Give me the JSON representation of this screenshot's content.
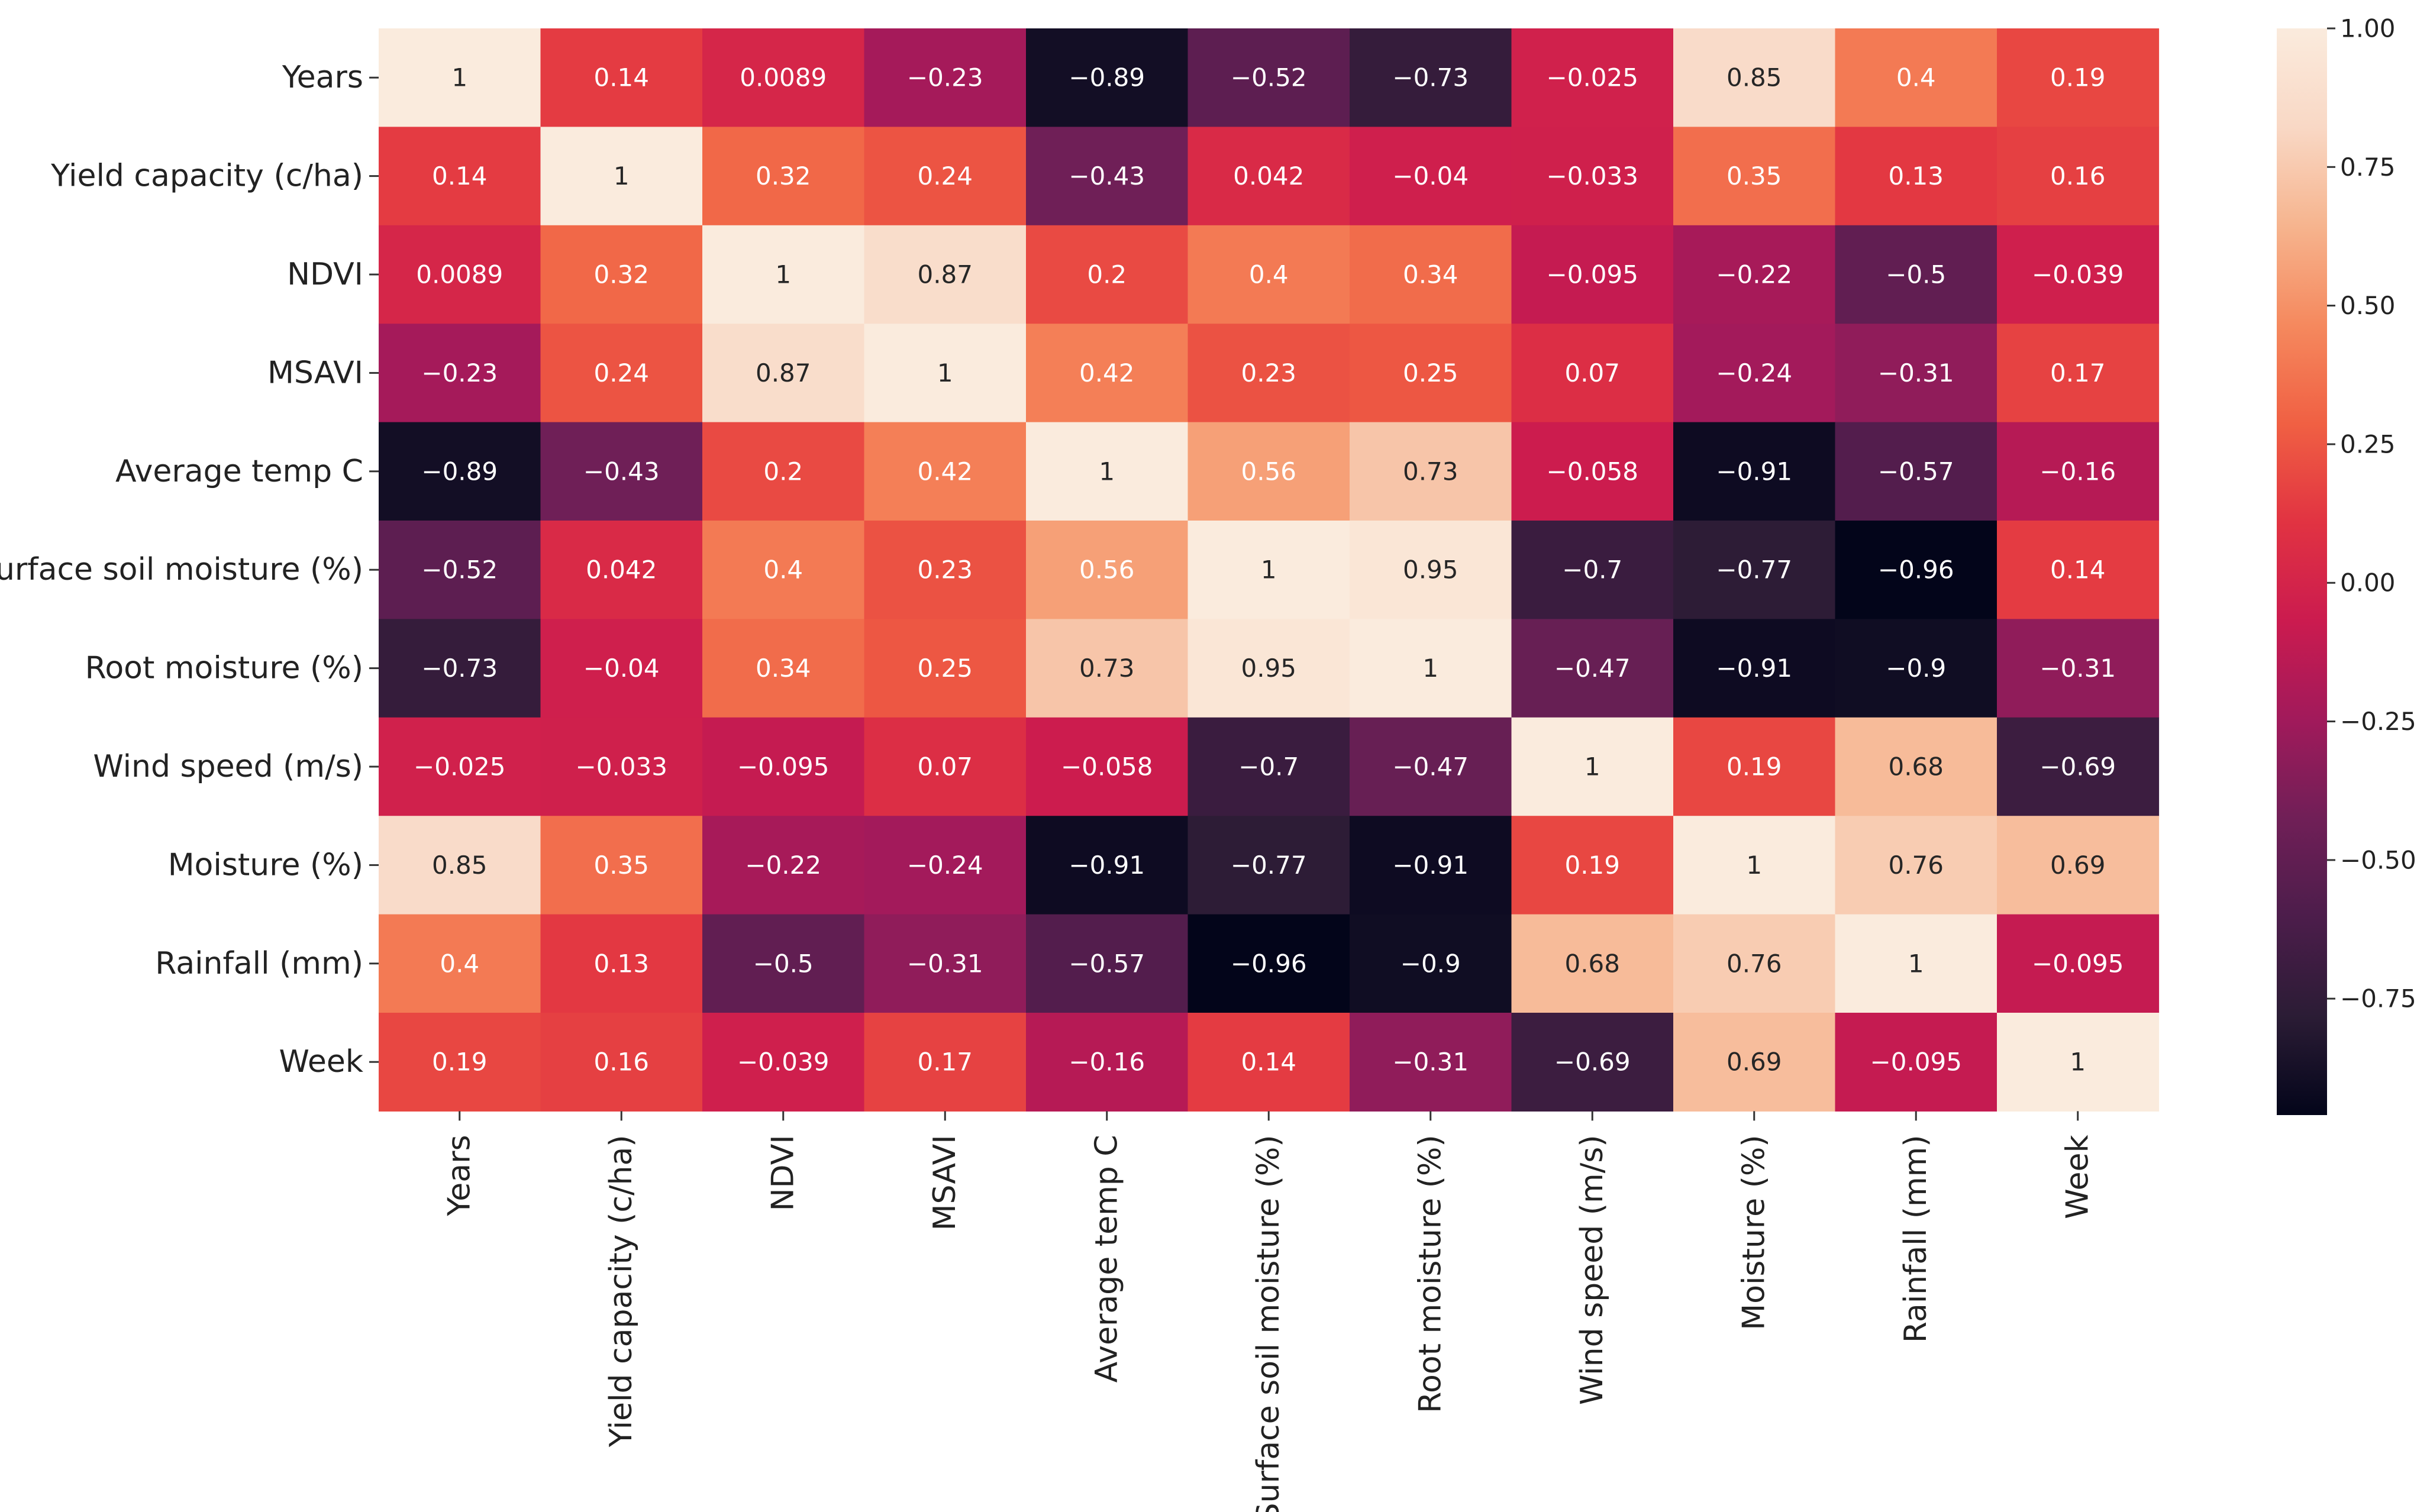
{
  "chart_data": {
    "type": "heatmap",
    "title": "",
    "xlabel": "",
    "ylabel": "",
    "labels": [
      "Years",
      "Yield capacity (c/ha)",
      "NDVI",
      "MSAVI",
      "Average temp C",
      "Surface soil moisture (%)",
      "Root moisture (%)",
      "Wind speed (m/s)",
      "Moisture (%)",
      "Rainfall (mm)",
      "Week"
    ],
    "matrix": [
      [
        1,
        0.14,
        0.0089,
        -0.23,
        -0.89,
        -0.52,
        -0.73,
        -0.025,
        0.85,
        0.4,
        0.19
      ],
      [
        0.14,
        1,
        0.32,
        0.24,
        -0.43,
        0.042,
        -0.04,
        -0.033,
        0.35,
        0.13,
        0.16
      ],
      [
        0.0089,
        0.32,
        1,
        0.87,
        0.2,
        0.4,
        0.34,
        -0.095,
        -0.22,
        -0.5,
        -0.039
      ],
      [
        -0.23,
        0.24,
        0.87,
        1,
        0.42,
        0.23,
        0.25,
        0.07,
        -0.24,
        -0.31,
        0.17
      ],
      [
        -0.89,
        -0.43,
        0.2,
        0.42,
        1,
        0.56,
        0.73,
        -0.058,
        -0.91,
        -0.57,
        -0.16
      ],
      [
        -0.52,
        0.042,
        0.4,
        0.23,
        0.56,
        1,
        0.95,
        -0.7,
        -0.77,
        -0.96,
        0.14
      ],
      [
        -0.73,
        -0.04,
        0.34,
        0.25,
        0.73,
        0.95,
        1,
        -0.47,
        -0.91,
        -0.9,
        -0.31
      ],
      [
        -0.025,
        -0.033,
        -0.095,
        0.07,
        -0.058,
        -0.7,
        -0.47,
        1,
        0.19,
        0.68,
        -0.69
      ],
      [
        0.85,
        0.35,
        -0.22,
        -0.24,
        -0.91,
        -0.77,
        -0.91,
        0.19,
        1,
        0.76,
        0.69
      ],
      [
        0.4,
        0.13,
        -0.5,
        -0.31,
        -0.57,
        -0.96,
        -0.9,
        0.68,
        0.76,
        1,
        -0.095
      ],
      [
        0.19,
        0.16,
        -0.039,
        0.17,
        -0.16,
        0.14,
        -0.31,
        -0.69,
        0.69,
        -0.095,
        1
      ]
    ],
    "cell_text": [
      [
        "1",
        "0.14",
        "0.0089",
        "−0.23",
        "−0.89",
        "−0.52",
        "−0.73",
        "−0.025",
        "0.85",
        "0.4",
        "0.19"
      ],
      [
        "0.14",
        "1",
        "0.32",
        "0.24",
        "−0.43",
        "0.042",
        "−0.04",
        "−0.033",
        "0.35",
        "0.13",
        "0.16"
      ],
      [
        "0.0089",
        "0.32",
        "1",
        "0.87",
        "0.2",
        "0.4",
        "0.34",
        "−0.095",
        "−0.22",
        "−0.5",
        "−0.039"
      ],
      [
        "−0.23",
        "0.24",
        "0.87",
        "1",
        "0.42",
        "0.23",
        "0.25",
        "0.07",
        "−0.24",
        "−0.31",
        "0.17"
      ],
      [
        "−0.89",
        "−0.43",
        "0.2",
        "0.42",
        "1",
        "0.56",
        "0.73",
        "−0.058",
        "−0.91",
        "−0.57",
        "−0.16"
      ],
      [
        "−0.52",
        "0.042",
        "0.4",
        "0.23",
        "0.56",
        "1",
        "0.95",
        "−0.7",
        "−0.77",
        "−0.96",
        "0.14"
      ],
      [
        "−0.73",
        "−0.04",
        "0.34",
        "0.25",
        "0.73",
        "0.95",
        "1",
        "−0.47",
        "−0.91",
        "−0.9",
        "−0.31"
      ],
      [
        "−0.025",
        "−0.033",
        "−0.095",
        "0.07",
        "−0.058",
        "−0.7",
        "−0.47",
        "1",
        "0.19",
        "0.68",
        "−0.69"
      ],
      [
        "0.85",
        "0.35",
        "−0.22",
        "−0.24",
        "−0.91",
        "−0.77",
        "−0.91",
        "0.19",
        "1",
        "0.76",
        "0.69"
      ],
      [
        "0.4",
        "0.13",
        "−0.5",
        "−0.31",
        "−0.57",
        "−0.96",
        "−0.9",
        "0.68",
        "0.76",
        "1",
        "−0.095"
      ],
      [
        "0.19",
        "0.16",
        "−0.039",
        "0.17",
        "−0.16",
        "0.14",
        "−0.31",
        "−0.69",
        "0.69",
        "−0.095",
        "1"
      ]
    ],
    "colorbar": {
      "range": [
        -0.96,
        1.0
      ],
      "ticks": [
        1.0,
        0.75,
        0.5,
        0.25,
        0.0,
        -0.25,
        -0.5,
        -0.75
      ],
      "tick_labels": [
        "1.00",
        "0.75",
        "0.50",
        "0.25",
        "0.00",
        "−0.25",
        "−0.50",
        "−0.75"
      ],
      "colormap": "rocket",
      "color_stops": [
        "#03051a",
        "#2b1c35",
        "#4c1d4b",
        "#701f57",
        "#a11a5b",
        "#cb1b4f",
        "#e13342",
        "#f06043",
        "#f5895e",
        "#f6b48e",
        "#f9d8c5",
        "#faebdd"
      ]
    },
    "label_colors": {
      "light": "#ffffff",
      "dark": "#262626"
    },
    "grid": false
  }
}
